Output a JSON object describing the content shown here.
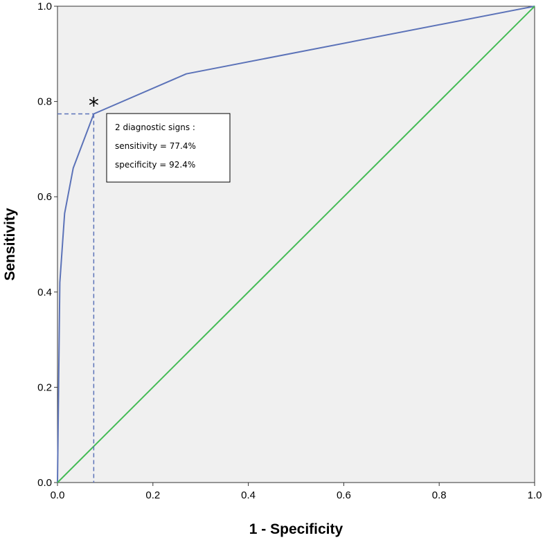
{
  "chart_data": {
    "type": "line",
    "title": "",
    "xlabel": "1 - Specificity",
    "ylabel": "Sensitivity",
    "xlim": [
      0,
      1
    ],
    "ylim": [
      0,
      1
    ],
    "x_ticks": [
      "0.0",
      "0.2",
      "0.4",
      "0.6",
      "0.8",
      "1.0"
    ],
    "y_ticks": [
      "0.0",
      "0.2",
      "0.4",
      "0.6",
      "0.8",
      "1.0"
    ],
    "grid": false,
    "legend": "none",
    "series": [
      {
        "color": "#5b72b8",
        "points": [
          [
            0,
            0
          ],
          [
            0.005,
            0.42
          ],
          [
            0.015,
            0.565
          ],
          [
            0.033,
            0.66
          ],
          [
            0.076,
            0.774
          ],
          [
            0.27,
            0.858
          ],
          [
            1,
            1
          ]
        ]
      },
      {
        "color": "#44bb55",
        "points": [
          [
            0,
            0
          ],
          [
            1,
            1
          ]
        ]
      }
    ],
    "highlight": {
      "x": 0.076,
      "y": 0.774,
      "marker": "*",
      "line_color": "#5b72b8"
    },
    "annotation": {
      "lines": [
        "2 diagnostic signs :",
        "sensitivity = 77.4%",
        "specificity = 92.4%"
      ]
    }
  }
}
